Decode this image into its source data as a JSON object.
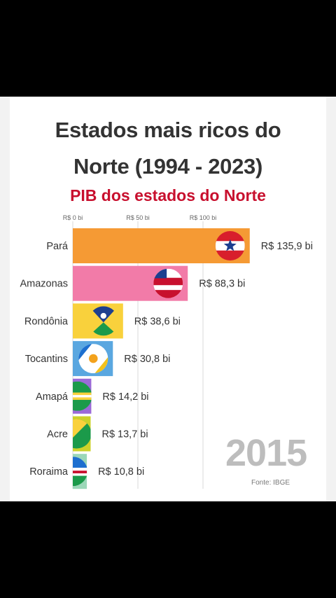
{
  "title_line1": "Estados mais ricos do",
  "title_line2": "Norte (1994 - 2023)",
  "subtitle": "PIB dos estados do Norte",
  "year": "2015",
  "source": "Fonte: IBGE",
  "chart_data": {
    "type": "bar",
    "orientation": "horizontal",
    "categories": [
      "Pará",
      "Amazonas",
      "Rondônia",
      "Tocantins",
      "Amapá",
      "Acre",
      "Roraima"
    ],
    "values": [
      135.9,
      88.3,
      38.6,
      30.8,
      14.2,
      13.7,
      10.8
    ],
    "value_labels": [
      "R$ 135,9 bi",
      "R$ 88,3 bi",
      "R$ 38,6 bi",
      "R$ 30,8 bi",
      "R$ 14,2 bi",
      "R$ 13,7 bi",
      "R$ 10,8 bi"
    ],
    "ticks": [
      0,
      50,
      100
    ],
    "tick_labels": [
      "R$ 0 bi",
      "R$ 50 bi",
      "R$ 100 bi"
    ],
    "colors": [
      "#f59a34",
      "#f27ba8",
      "#f9d13c",
      "#5aa7e0",
      "#9b6ad8",
      "#ccd22a",
      "#9bd7b8"
    ],
    "icons": [
      "para-flag-icon",
      "amazonas-flag-icon",
      "rondonia-flag-icon",
      "tocantins-flag-icon",
      "amapa-flag-icon",
      "acre-flag-icon",
      "roraima-flag-icon"
    ],
    "grid": true
  }
}
